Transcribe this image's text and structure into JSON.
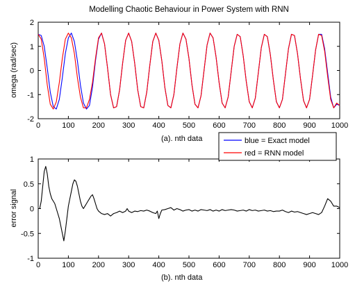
{
  "chart_data": [
    {
      "type": "line",
      "title": "Modelling Chaotic Behaviour in Power System with RNN",
      "xlabel": "(a).  nth data",
      "ylabel": "omega (rad/sec)",
      "xlim": [
        0,
        1000
      ],
      "ylim": [
        -2,
        2
      ],
      "xticks": [
        0,
        100,
        200,
        300,
        400,
        500,
        600,
        700,
        800,
        900,
        1000
      ],
      "yticks": [
        -2,
        -1,
        0,
        1,
        2
      ],
      "grid": false,
      "legend": {
        "placement": "bottom-right, outside below plot",
        "entries": [
          "blue = Exact model",
          "red = RNN model"
        ]
      },
      "series": [
        {
          "color": "#0000ff",
          "x": [
            0,
            10,
            20,
            30,
            40,
            50,
            60,
            70,
            80,
            90,
            100,
            110,
            120,
            130,
            140,
            150,
            160,
            170,
            180,
            190,
            200,
            210,
            220,
            230,
            240,
            250,
            260,
            270,
            280,
            290,
            300,
            310,
            320,
            330,
            340,
            350,
            360,
            370,
            380,
            390,
            400,
            410,
            420,
            430,
            440,
            450,
            460,
            470,
            480,
            490,
            500,
            510,
            520,
            530,
            540,
            550,
            560,
            570,
            580,
            590,
            600,
            610,
            620,
            630,
            640,
            650,
            660,
            670,
            680,
            690,
            700,
            710,
            720,
            730,
            740,
            750,
            760,
            770,
            780,
            790,
            800,
            810,
            820,
            830,
            840,
            850,
            860,
            870,
            880,
            890,
            900,
            910,
            920,
            930,
            940,
            950,
            960,
            970,
            980,
            990,
            1000
          ],
          "y": [
            1.5,
            1.45,
            1.0,
            0.1,
            -0.9,
            -1.5,
            -1.6,
            -1.2,
            -0.3,
            0.7,
            1.35,
            1.55,
            1.2,
            0.4,
            -0.6,
            -1.35,
            -1.6,
            -1.45,
            -0.7,
            0.4,
            1.3,
            1.55,
            1.1,
            0.1,
            -1.0,
            -1.55,
            -1.5,
            -0.8,
            0.3,
            1.25,
            1.55,
            1.2,
            0.3,
            -0.8,
            -1.5,
            -1.55,
            -0.9,
            0.2,
            1.2,
            1.55,
            1.25,
            0.4,
            -0.7,
            -1.45,
            -1.55,
            -1.0,
            0.1,
            1.1,
            1.55,
            1.3,
            0.5,
            -0.6,
            -1.4,
            -1.55,
            -1.05,
            0.0,
            1.05,
            1.55,
            1.35,
            0.55,
            -0.5,
            -1.35,
            -1.55,
            -1.1,
            -0.05,
            1.0,
            1.5,
            1.4,
            0.6,
            -0.45,
            -1.3,
            -1.55,
            -1.15,
            -0.1,
            0.95,
            1.5,
            1.4,
            0.65,
            -0.4,
            -1.3,
            -1.55,
            -1.2,
            -0.15,
            0.9,
            1.5,
            1.45,
            0.7,
            -0.35,
            -1.25,
            -1.55,
            -1.2,
            -0.2,
            0.85,
            1.5,
            1.5,
            0.9,
            -0.1,
            -1.1,
            -1.55,
            -1.4,
            -1.45
          ]
        },
        {
          "color": "#ff0000",
          "x": [
            0,
            10,
            20,
            30,
            40,
            50,
            60,
            70,
            80,
            90,
            100,
            110,
            120,
            130,
            140,
            150,
            160,
            170,
            180,
            190,
            200,
            210,
            220,
            230,
            240,
            250,
            260,
            270,
            280,
            290,
            300,
            310,
            320,
            330,
            340,
            350,
            360,
            370,
            380,
            390,
            400,
            410,
            420,
            430,
            440,
            450,
            460,
            470,
            480,
            490,
            500,
            510,
            520,
            530,
            540,
            550,
            560,
            570,
            580,
            590,
            600,
            610,
            620,
            630,
            640,
            650,
            660,
            670,
            680,
            690,
            700,
            710,
            720,
            730,
            740,
            750,
            760,
            770,
            780,
            790,
            800,
            810,
            820,
            830,
            840,
            850,
            860,
            870,
            880,
            890,
            900,
            910,
            920,
            930,
            940,
            950,
            960,
            970,
            980,
            990,
            1000
          ],
          "y": [
            1.5,
            1.3,
            0.5,
            -0.6,
            -1.4,
            -1.6,
            -1.3,
            -0.5,
            0.5,
            1.3,
            1.55,
            1.35,
            0.7,
            -0.3,
            -1.1,
            -1.55,
            -1.55,
            -1.2,
            -0.5,
            0.5,
            1.35,
            1.55,
            1.1,
            0.1,
            -1.0,
            -1.55,
            -1.5,
            -0.8,
            0.3,
            1.25,
            1.55,
            1.2,
            0.3,
            -0.8,
            -1.5,
            -1.55,
            -0.9,
            0.2,
            1.2,
            1.55,
            1.25,
            0.4,
            -0.7,
            -1.45,
            -1.55,
            -1.0,
            0.1,
            1.1,
            1.55,
            1.3,
            0.5,
            -0.6,
            -1.4,
            -1.55,
            -1.05,
            0.0,
            1.05,
            1.55,
            1.35,
            0.55,
            -0.5,
            -1.35,
            -1.55,
            -1.1,
            -0.05,
            1.0,
            1.5,
            1.4,
            0.6,
            -0.45,
            -1.3,
            -1.55,
            -1.15,
            -0.1,
            0.95,
            1.5,
            1.4,
            0.65,
            -0.4,
            -1.3,
            -1.55,
            -1.2,
            -0.15,
            0.9,
            1.5,
            1.45,
            0.7,
            -0.35,
            -1.25,
            -1.55,
            -1.2,
            -0.2,
            0.85,
            1.5,
            1.45,
            0.8,
            -0.25,
            -1.2,
            -1.55,
            -1.35,
            -1.45
          ]
        }
      ]
    },
    {
      "type": "line",
      "xlabel": "(b).  nth data",
      "ylabel": "error signal",
      "xlim": [
        0,
        1000
      ],
      "ylim": [
        -1,
        1
      ],
      "xticks": [
        0,
        100,
        200,
        300,
        400,
        500,
        600,
        700,
        800,
        900,
        1000
      ],
      "yticks": [
        -1,
        -0.5,
        0,
        0.5,
        1
      ],
      "ytick_labels": [
        "-1",
        "-0.5",
        "0",
        "0.5",
        "1"
      ],
      "grid": false,
      "series": [
        {
          "color": "#000000",
          "x": [
            0,
            5,
            10,
            15,
            20,
            25,
            30,
            35,
            40,
            45,
            50,
            55,
            60,
            65,
            70,
            75,
            80,
            85,
            90,
            95,
            100,
            105,
            110,
            115,
            120,
            125,
            130,
            135,
            140,
            145,
            150,
            155,
            160,
            165,
            170,
            175,
            180,
            185,
            190,
            195,
            200,
            210,
            220,
            230,
            240,
            250,
            260,
            270,
            280,
            290,
            295,
            300,
            310,
            320,
            330,
            340,
            350,
            360,
            370,
            380,
            390,
            395,
            400,
            405,
            410,
            420,
            430,
            440,
            450,
            460,
            470,
            480,
            490,
            500,
            510,
            520,
            530,
            540,
            550,
            560,
            570,
            580,
            590,
            600,
            610,
            620,
            630,
            640,
            650,
            660,
            670,
            680,
            690,
            700,
            710,
            720,
            730,
            740,
            750,
            760,
            770,
            780,
            790,
            800,
            810,
            820,
            830,
            840,
            850,
            860,
            870,
            880,
            890,
            900,
            910,
            920,
            930,
            940,
            950,
            960,
            970,
            980,
            990,
            1000
          ],
          "y": [
            0.0,
            0.0,
            0.15,
            0.45,
            0.75,
            0.85,
            0.7,
            0.45,
            0.3,
            0.2,
            0.15,
            0.1,
            0.0,
            -0.1,
            -0.2,
            -0.35,
            -0.5,
            -0.65,
            -0.45,
            -0.2,
            0.05,
            0.2,
            0.35,
            0.5,
            0.58,
            0.55,
            0.45,
            0.3,
            0.15,
            0.05,
            0.0,
            0.05,
            0.1,
            0.15,
            0.2,
            0.25,
            0.28,
            0.2,
            0.1,
            0.0,
            -0.05,
            -0.1,
            -0.12,
            -0.1,
            -0.15,
            -0.1,
            -0.08,
            -0.05,
            -0.08,
            -0.05,
            0.0,
            -0.05,
            -0.08,
            -0.05,
            -0.06,
            -0.04,
            -0.05,
            -0.03,
            -0.05,
            -0.08,
            -0.1,
            -0.05,
            -0.2,
            -0.1,
            -0.03,
            -0.02,
            0.0,
            0.02,
            -0.03,
            0.0,
            -0.02,
            -0.05,
            -0.03,
            -0.02,
            -0.05,
            -0.03,
            -0.05,
            -0.02,
            -0.03,
            -0.04,
            -0.02,
            -0.05,
            -0.03,
            -0.05,
            -0.02,
            -0.04,
            -0.03,
            -0.02,
            -0.03,
            -0.05,
            -0.04,
            -0.03,
            -0.05,
            -0.02,
            -0.04,
            -0.03,
            -0.05,
            -0.04,
            -0.03,
            -0.05,
            -0.04,
            -0.06,
            -0.05,
            -0.05,
            -0.03,
            -0.06,
            -0.08,
            -0.05,
            -0.07,
            -0.06,
            -0.08,
            -0.1,
            -0.12,
            -0.1,
            -0.08,
            -0.1,
            -0.12,
            -0.08,
            0.05,
            0.2,
            0.15,
            0.05,
            0.05,
            0.02
          ]
        }
      ]
    }
  ]
}
